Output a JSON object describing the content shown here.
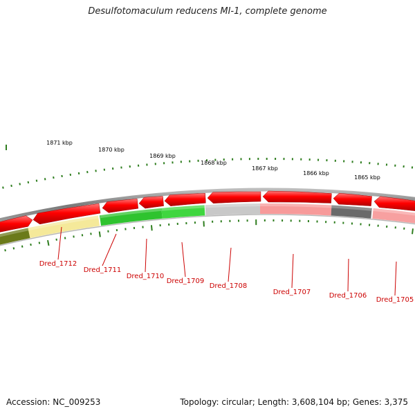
{
  "header": {
    "title": "Desulfotomaculum reducens MI-1, complete genome"
  },
  "footer": {
    "accession": "Accession: NC_009253",
    "topology": "Topology: circular; Length: 3,608,104 bp; Genes: 3,375"
  },
  "colors": {
    "major_tick": "#2e7d1e",
    "minor_tick": "#2e7d1e",
    "backbone": "#808080",
    "forward_gene": "#ee0000",
    "label": "#cc0000"
  },
  "scale_labels": [
    "1871 kbp",
    "1870 kbp",
    "1869 kbp",
    "1868 kbp",
    "1867 kbp",
    "1866 kbp",
    "1865 kbp"
  ],
  "gene_labels": [
    "Dred_1712",
    "Dred_1711",
    "Dred_1710",
    "Dred_1709",
    "Dred_1708",
    "Dred_1707",
    "Dred_1706",
    "Dred_1705"
  ],
  "lower_segment_colors": [
    "#6b7a1a",
    "#f5e99a",
    "#2fc32f",
    "#3fd63f",
    "#c8c8c8",
    "#f79a9a",
    "#6a6a6a",
    "#f7a0a0"
  ]
}
